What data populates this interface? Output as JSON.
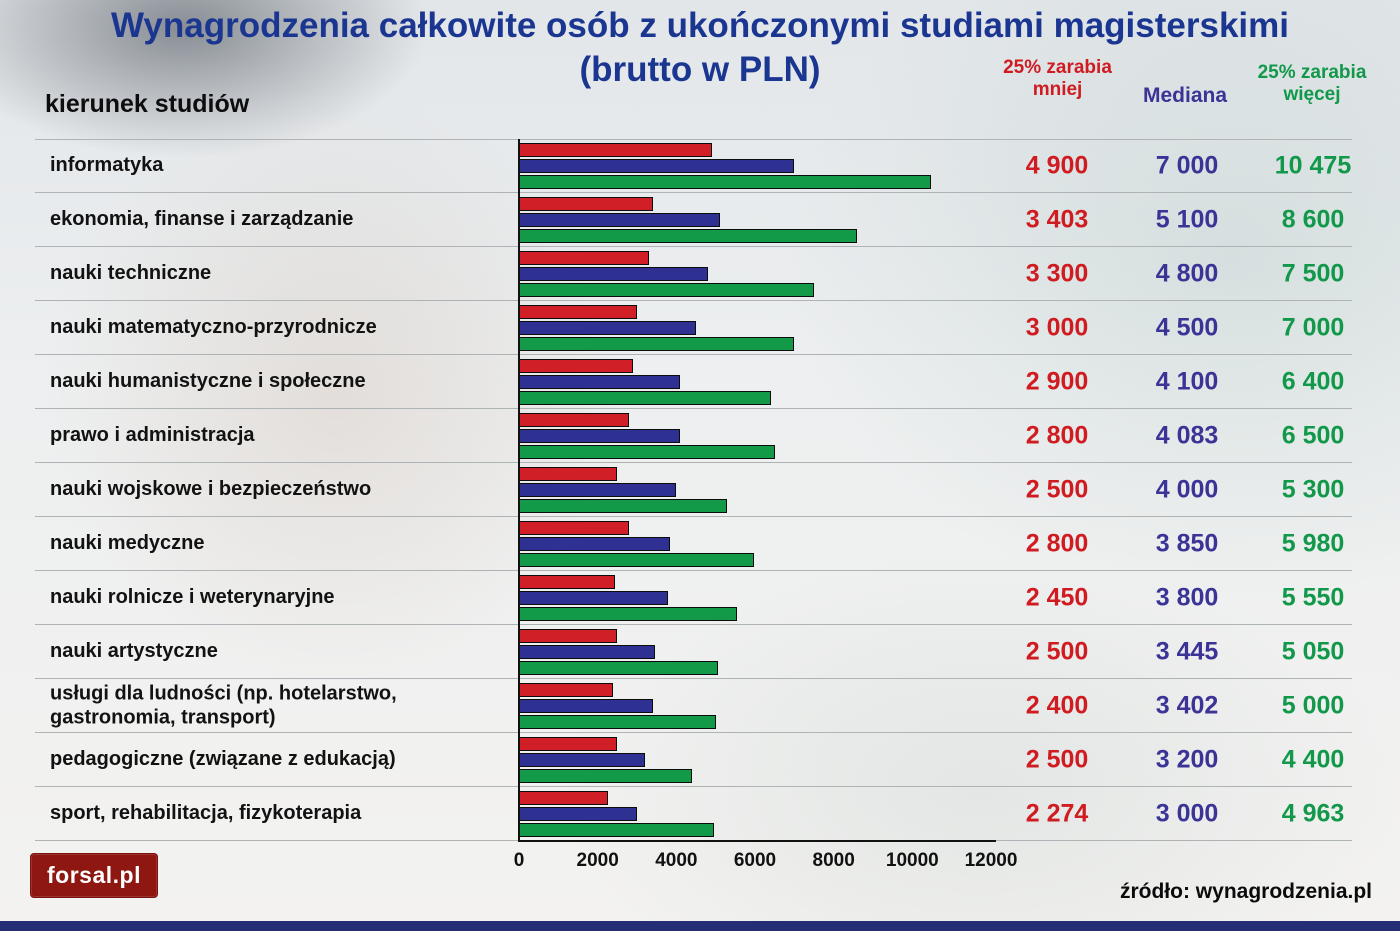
{
  "title": "Wynagrodzenia całkowite osób z ukończonymi studiami magisterskimi\n(brutto w PLN)",
  "left_header": "kierunek studiów",
  "column_headers": {
    "less": "25% zarabia mniej",
    "median": "Mediana",
    "more": "25% zarabia więcej"
  },
  "chart_data": {
    "type": "bar",
    "orientation": "horizontal",
    "title": "Wynagrodzenia całkowite osób z ukończonymi studiami magisterskimi (brutto w PLN)",
    "categories": [
      "informatyka",
      "ekonomia, finanse i zarządzanie",
      "nauki techniczne",
      "nauki matematyczno-przyrodnicze",
      "nauki humanistyczne i społeczne",
      "prawo i administracja",
      "nauki wojskowe i bezpieczeństwo",
      "nauki medyczne",
      "nauki rolnicze i weterynaryjne",
      "nauki artystyczne",
      "usługi dla ludności (np. hotelarstwo, gastronomia, transport)",
      "pedagogiczne (związane z edukacją)",
      "sport, rehabilitacja, fizykoterapia"
    ],
    "series": [
      {
        "key": "less",
        "name": "25% zarabia mniej",
        "color": "#d01f26",
        "values": [
          4900,
          3403,
          3300,
          3000,
          2900,
          2800,
          2500,
          2800,
          2450,
          2500,
          2400,
          2500,
          2274
        ]
      },
      {
        "key": "median",
        "name": "Mediana",
        "color": "#2e3192",
        "values": [
          7000,
          5100,
          4800,
          4500,
          4100,
          4083,
          4000,
          3850,
          3800,
          3445,
          3402,
          3200,
          3000
        ]
      },
      {
        "key": "more",
        "name": "25% zarabia więcej",
        "color": "#139a49",
        "values": [
          10475,
          8600,
          7500,
          7000,
          6400,
          6500,
          5300,
          5980,
          5550,
          5050,
          5000,
          4400,
          4963
        ]
      }
    ],
    "xlim": [
      0,
      12000
    ],
    "xticks": [
      0,
      2000,
      4000,
      6000,
      8000,
      10000,
      12000
    ],
    "grid": "horizontal row separators",
    "legend": "as colored column headers at right"
  },
  "footer": {
    "logo_text": "forsal.pl",
    "source": "źródło: wynagrodzenia.pl"
  }
}
